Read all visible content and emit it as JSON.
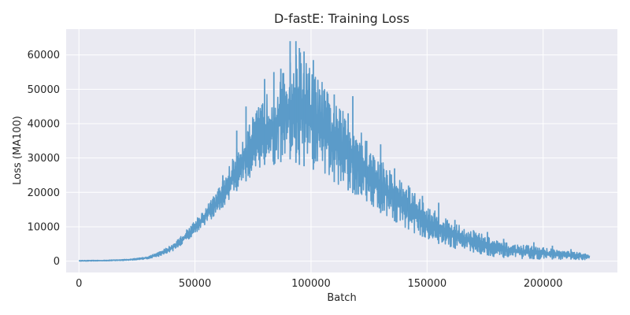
{
  "chart_data": {
    "type": "line",
    "title": "D-fastE: Training Loss",
    "xlabel": "Batch",
    "ylabel": "Loss (MA100)",
    "xlim": [
      -5500,
      232000
    ],
    "ylim": [
      -3300,
      67500
    ],
    "xticks": [
      0,
      50000,
      100000,
      150000,
      200000
    ],
    "xtick_labels": [
      "0",
      "50000",
      "100000",
      "150000",
      "200000"
    ],
    "yticks": [
      0,
      10000,
      20000,
      30000,
      40000,
      50000,
      60000
    ],
    "ytick_labels": [
      "0",
      "10000",
      "20000",
      "30000",
      "40000",
      "50000",
      "60000"
    ],
    "grid": true,
    "legend": "none",
    "series": [
      {
        "color": "#5b9bc9",
        "x": [
          0,
          10000,
          20000,
          25000,
          30000,
          35000,
          40000,
          45000,
          50000,
          55000,
          60000,
          65000,
          70000,
          75000,
          80000,
          85000,
          90000,
          95000,
          100000,
          105000,
          110000,
          115000,
          120000,
          125000,
          130000,
          135000,
          140000,
          145000,
          150000,
          155000,
          160000,
          165000,
          170000,
          175000,
          180000,
          185000,
          190000,
          195000,
          200000,
          205000,
          210000,
          215000,
          220000
        ],
        "lower": [
          0,
          60,
          200,
          350,
          700,
          1500,
          2800,
          5000,
          8000,
          11000,
          14000,
          18000,
          22000,
          25000,
          28000,
          28000,
          30000,
          28000,
          27000,
          25000,
          23000,
          21000,
          19000,
          17000,
          14000,
          12000,
          10000,
          8000,
          6500,
          5000,
          4000,
          3200,
          2500,
          1800,
          1200,
          900,
          700,
          600,
          600,
          500,
          500,
          400,
          400
        ],
        "upper": [
          200,
          250,
          500,
          800,
          1400,
          2800,
          4800,
          8000,
          12000,
          16000,
          21000,
          28000,
          36000,
          42000,
          48000,
          52000,
          57000,
          62000,
          56000,
          52000,
          46000,
          43000,
          40000,
          33000,
          30000,
          26000,
          23000,
          20000,
          16000,
          14000,
          12000,
          10000,
          9000,
          7500,
          6000,
          5200,
          4800,
          4500,
          4000,
          3500,
          3000,
          2500,
          2000
        ],
        "spikes": [
          [
            91000,
            64000
          ],
          [
            93500,
            64000
          ],
          [
            95000,
            62000
          ],
          [
            97000,
            61000
          ],
          [
            101000,
            58500
          ],
          [
            87000,
            56000
          ],
          [
            84000,
            55000
          ],
          [
            80000,
            53000
          ],
          [
            110000,
            48500
          ],
          [
            118000,
            48000
          ],
          [
            116000,
            43000
          ],
          [
            72000,
            45000
          ],
          [
            68000,
            38000
          ],
          [
            62000,
            25000
          ],
          [
            124000,
            35000
          ],
          [
            130000,
            34000
          ],
          [
            136000,
            27000
          ],
          [
            142000,
            22000
          ],
          [
            148000,
            19000
          ],
          [
            155000,
            17000
          ],
          [
            162000,
            12000
          ],
          [
            170000,
            9000
          ],
          [
            176000,
            8500
          ],
          [
            183000,
            6500
          ],
          [
            196000,
            5500
          ],
          [
            204000,
            4500
          ],
          [
            212000,
            3500
          ]
        ]
      }
    ]
  }
}
